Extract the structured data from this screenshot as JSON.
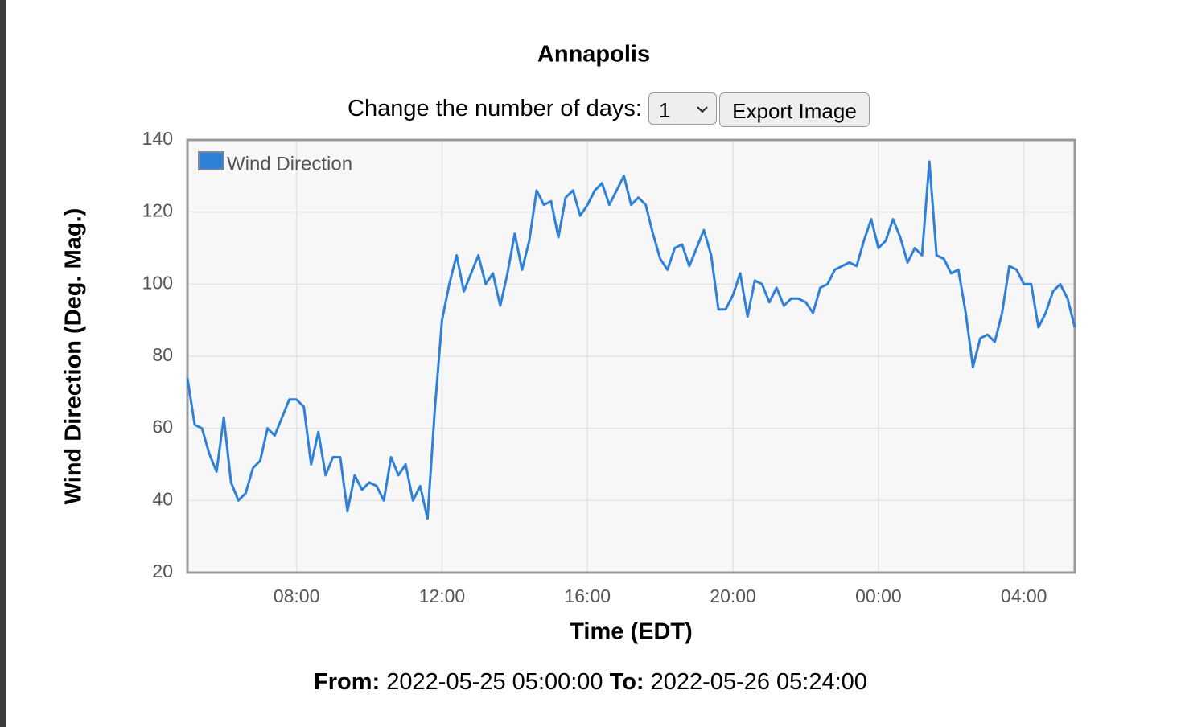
{
  "chart_data": {
    "type": "line",
    "title": "Annapolis",
    "xlabel": "Time (EDT)",
    "ylabel": "Wind Direction (Deg. Mag.)",
    "xlim": [
      "2022-05-25 05:00",
      "2022-05-26 05:24"
    ],
    "xticks": [
      {
        "value": "2022-05-25 08:00",
        "label": "08:00"
      },
      {
        "value": "2022-05-25 12:00",
        "label": "12:00"
      },
      {
        "value": "2022-05-25 16:00",
        "label": "16:00"
      },
      {
        "value": "2022-05-25 20:00",
        "label": "20:00"
      },
      {
        "value": "2022-05-26 00:00",
        "label": "00:00"
      },
      {
        "value": "2022-05-26 04:00",
        "label": "04:00"
      }
    ],
    "ylim": [
      20,
      140
    ],
    "yticks": [
      20,
      40,
      60,
      80,
      100,
      120,
      140
    ],
    "grid": true,
    "legend": "top-left",
    "x": [
      "2022-05-25 05:00",
      "2022-05-25 05:12",
      "2022-05-25 05:24",
      "2022-05-25 05:36",
      "2022-05-25 05:48",
      "2022-05-25 06:00",
      "2022-05-25 06:12",
      "2022-05-25 06:24",
      "2022-05-25 06:36",
      "2022-05-25 06:48",
      "2022-05-25 07:00",
      "2022-05-25 07:12",
      "2022-05-25 07:24",
      "2022-05-25 07:36",
      "2022-05-25 07:48",
      "2022-05-25 08:00",
      "2022-05-25 08:12",
      "2022-05-25 08:24",
      "2022-05-25 08:36",
      "2022-05-25 08:48",
      "2022-05-25 09:00",
      "2022-05-25 09:12",
      "2022-05-25 09:24",
      "2022-05-25 09:36",
      "2022-05-25 09:48",
      "2022-05-25 10:00",
      "2022-05-25 10:12",
      "2022-05-25 10:24",
      "2022-05-25 10:36",
      "2022-05-25 10:48",
      "2022-05-25 11:00",
      "2022-05-25 11:12",
      "2022-05-25 11:24",
      "2022-05-25 11:36",
      "2022-05-25 11:48",
      "2022-05-25 12:00",
      "2022-05-25 12:12",
      "2022-05-25 12:24",
      "2022-05-25 12:36",
      "2022-05-25 12:48",
      "2022-05-25 13:00",
      "2022-05-25 13:12",
      "2022-05-25 13:24",
      "2022-05-25 13:36",
      "2022-05-25 13:48",
      "2022-05-25 14:00",
      "2022-05-25 14:12",
      "2022-05-25 14:24",
      "2022-05-25 14:36",
      "2022-05-25 14:48",
      "2022-05-25 15:00",
      "2022-05-25 15:12",
      "2022-05-25 15:24",
      "2022-05-25 15:36",
      "2022-05-25 15:48",
      "2022-05-25 16:00",
      "2022-05-25 16:12",
      "2022-05-25 16:24",
      "2022-05-25 16:36",
      "2022-05-25 16:48",
      "2022-05-25 17:00",
      "2022-05-25 17:12",
      "2022-05-25 17:24",
      "2022-05-25 17:36",
      "2022-05-25 17:48",
      "2022-05-25 18:00",
      "2022-05-25 18:12",
      "2022-05-25 18:24",
      "2022-05-25 18:36",
      "2022-05-25 18:48",
      "2022-05-25 19:00",
      "2022-05-25 19:12",
      "2022-05-25 19:24",
      "2022-05-25 19:36",
      "2022-05-25 19:48",
      "2022-05-25 20:00",
      "2022-05-25 20:12",
      "2022-05-25 20:24",
      "2022-05-25 20:36",
      "2022-05-25 20:48",
      "2022-05-25 21:00",
      "2022-05-25 21:12",
      "2022-05-25 21:24",
      "2022-05-25 21:36",
      "2022-05-25 21:48",
      "2022-05-25 22:00",
      "2022-05-25 22:12",
      "2022-05-25 22:24",
      "2022-05-25 22:36",
      "2022-05-25 22:48",
      "2022-05-25 23:00",
      "2022-05-25 23:12",
      "2022-05-25 23:24",
      "2022-05-25 23:36",
      "2022-05-25 23:48",
      "2022-05-26 00:00",
      "2022-05-26 00:12",
      "2022-05-26 00:24",
      "2022-05-26 00:36",
      "2022-05-26 00:48",
      "2022-05-26 01:00",
      "2022-05-26 01:12",
      "2022-05-26 01:24",
      "2022-05-26 01:36",
      "2022-05-26 01:48",
      "2022-05-26 02:00",
      "2022-05-26 02:12",
      "2022-05-26 02:24",
      "2022-05-26 02:36",
      "2022-05-26 02:48",
      "2022-05-26 03:00",
      "2022-05-26 03:12",
      "2022-05-26 03:24",
      "2022-05-26 03:36",
      "2022-05-26 03:48",
      "2022-05-26 04:00",
      "2022-05-26 04:12",
      "2022-05-26 04:24",
      "2022-05-26 04:36",
      "2022-05-26 04:48",
      "2022-05-26 05:00",
      "2022-05-26 05:12",
      "2022-05-26 05:24"
    ],
    "series": [
      {
        "name": "Wind Direction",
        "color": "#2f80d8",
        "values": [
          74,
          61,
          60,
          53,
          48,
          63,
          45,
          40,
          42,
          49,
          51,
          60,
          58,
          63,
          68,
          68,
          66,
          50,
          59,
          47,
          52,
          52,
          37,
          47,
          43,
          45,
          44,
          40,
          52,
          47,
          50,
          40,
          44,
          35,
          65,
          90,
          100,
          108,
          98,
          103,
          108,
          100,
          103,
          94,
          103,
          114,
          104,
          112,
          126,
          122,
          123,
          113,
          124,
          126,
          119,
          122,
          126,
          128,
          122,
          126,
          130,
          122,
          124,
          122,
          114,
          107,
          104,
          110,
          111,
          105,
          110,
          115,
          108,
          93,
          93,
          97,
          103,
          91,
          101,
          100,
          95,
          99,
          94,
          96,
          96,
          95,
          92,
          99,
          100,
          104,
          105,
          106,
          105,
          112,
          118,
          110,
          112,
          118,
          113,
          106,
          110,
          108,
          134,
          108,
          107,
          103,
          104,
          92,
          77,
          85,
          86,
          84,
          92,
          105,
          104,
          100,
          100,
          88,
          92,
          98,
          100,
          96,
          88
        ]
      }
    ]
  },
  "controls": {
    "days_label": "Change the number of days:",
    "days_value": "1",
    "export_button": "Export Image"
  },
  "range": {
    "from_label": "From:",
    "from": "2022-05-25 05:00:00",
    "to_label": "To:",
    "to": "2022-05-26 05:24:00"
  }
}
